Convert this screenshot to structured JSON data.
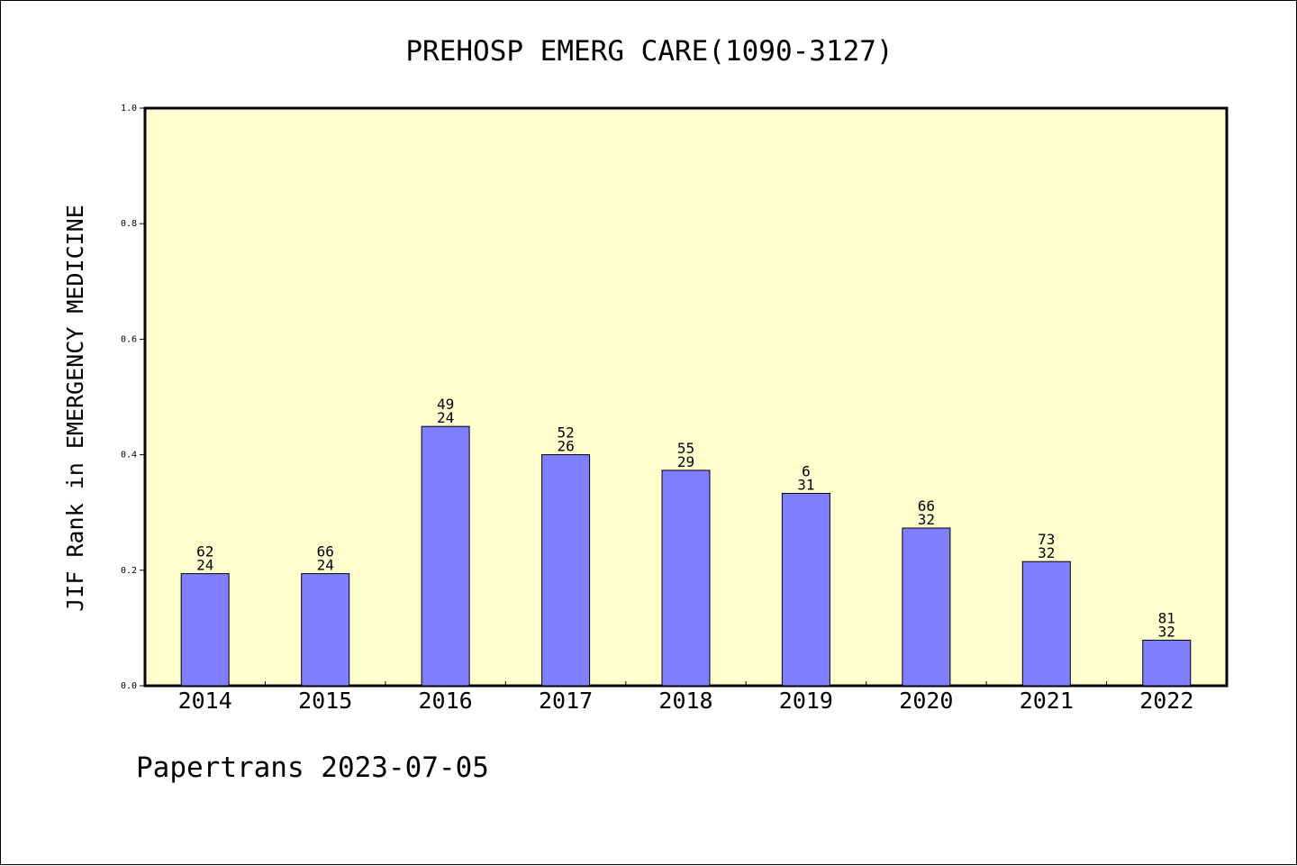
{
  "footer": "Papertrans 2023-07-05",
  "colors": {
    "plot_background": "#ffffd0",
    "bar_fill": "#8080ff",
    "bar_stroke": "#000000"
  },
  "chart_data": {
    "type": "bar",
    "title": "PREHOSP EMERG CARE(1090-3127)",
    "xlabel": "",
    "ylabel": "JIF Rank in EMERGENCY MEDICINE",
    "ylim": [
      0.0,
      1.0
    ],
    "yticks": [
      0.0,
      0.2,
      0.4,
      0.6,
      0.8,
      1.0
    ],
    "ytick_labels": [
      "0.0",
      "0.2",
      "0.4",
      "0.6",
      "0.8",
      "1.0"
    ],
    "grid": false,
    "categories": [
      "2014",
      "2015",
      "2016",
      "2017",
      "2018",
      "2019",
      "2020",
      "2021",
      "2022"
    ],
    "values": [
      0.194,
      0.194,
      0.449,
      0.4,
      0.373,
      0.333,
      0.273,
      0.215,
      0.079
    ],
    "data_labels": [
      [
        "62",
        "24"
      ],
      [
        "66",
        "24"
      ],
      [
        "49",
        "24"
      ],
      [
        "52",
        "26"
      ],
      [
        "55",
        "29"
      ],
      [
        "6",
        "31"
      ],
      [
        "66",
        "32"
      ],
      [
        "73",
        "32"
      ],
      [
        "81",
        "32"
      ]
    ]
  }
}
